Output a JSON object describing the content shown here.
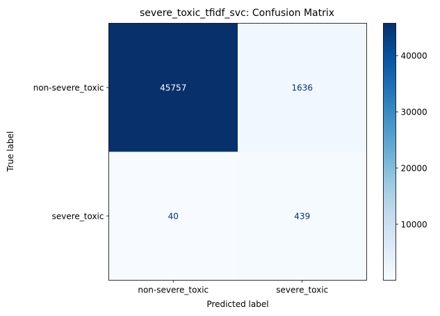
{
  "chart_data": {
    "type": "heatmap",
    "title": "severe_toxic_tfidf_svc: Confusion Matrix",
    "xlabel": "Predicted label",
    "ylabel": "True label",
    "x_categories": [
      "non-severe_toxic",
      "severe_toxic"
    ],
    "y_categories": [
      "non-severe_toxic",
      "severe_toxic"
    ],
    "values": [
      [
        45757,
        1636
      ],
      [
        40,
        439
      ]
    ],
    "colormap": "Blues",
    "colorbar": {
      "ticks": [
        10000,
        20000,
        30000,
        40000
      ],
      "tick_labels": [
        "10000",
        "20000",
        "30000",
        "40000"
      ],
      "range": [
        40,
        45757
      ]
    },
    "text_color_dark_cell": "#ffffff",
    "text_color_light_cell": "#08306b"
  }
}
